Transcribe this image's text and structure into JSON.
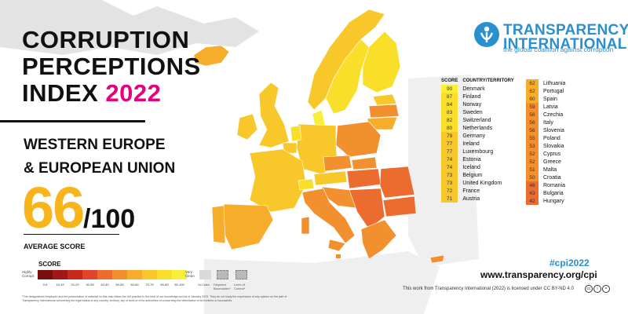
{
  "title": {
    "line1": "CORRUPTION",
    "line2": "PERCEPTIONS",
    "line3_prefix": "INDEX ",
    "year": "2022"
  },
  "region": {
    "line1": "WESTERN EUROPE",
    "line2": "& EUROPEAN UNION"
  },
  "score": {
    "value": "66",
    "denominator": "/100",
    "label": "AVERAGE SCORE"
  },
  "legend": {
    "title": "SCORE",
    "low_label": "Highly Corrupt",
    "high_label": "Very Clean",
    "bins": [
      {
        "label": "0-9",
        "color": "#7a0e0e"
      },
      {
        "label": "10-19",
        "color": "#a11616"
      },
      {
        "label": "20-29",
        "color": "#c8271c"
      },
      {
        "label": "30-39",
        "color": "#e0452a"
      },
      {
        "label": "40-49",
        "color": "#ec6b2e"
      },
      {
        "label": "50-59",
        "color": "#f2902f"
      },
      {
        "label": "60-69",
        "color": "#f6ad2c"
      },
      {
        "label": "70-79",
        "color": "#f8c72a"
      },
      {
        "label": "80-89",
        "color": "#f9df2a"
      },
      {
        "label": "90-100",
        "color": "#f7ef3b"
      }
    ],
    "no_data": "No Data",
    "disputed": "Disputed Boundaries*",
    "control": "Lines of Control*"
  },
  "disclaimer": "*The designations employed and the presentation of material on this map follow the UN practice to the best of our knowledge and as of January 2023. They do not imply the expression of any opinion on the part of Transparency International concerning the legal status of any country, territory, city or area or of its authorities or concerning the delimitation of its frontiers or boundaries.",
  "brand": {
    "name_line1": "TRANSPARENCY",
    "name_line2": "INTERNATIONAL",
    "tagline": "the global coalition against corruption",
    "color": "#2a8fcf"
  },
  "table": {
    "headers": {
      "score": "SCORE",
      "country": "COUNTRY/TERRITORY"
    },
    "col1": [
      {
        "score": "90",
        "country": "Denmark"
      },
      {
        "score": "87",
        "country": "Finland"
      },
      {
        "score": "84",
        "country": "Norway"
      },
      {
        "score": "83",
        "country": "Sweden"
      },
      {
        "score": "82",
        "country": "Switzerland"
      },
      {
        "score": "80",
        "country": "Netherlands"
      },
      {
        "score": "79",
        "country": "Germany"
      },
      {
        "score": "77",
        "country": "Ireland"
      },
      {
        "score": "77",
        "country": "Luxembourg"
      },
      {
        "score": "74",
        "country": "Estonia"
      },
      {
        "score": "74",
        "country": "Iceland"
      },
      {
        "score": "73",
        "country": "Belgium"
      },
      {
        "score": "73",
        "country": "United Kingdom"
      },
      {
        "score": "72",
        "country": "France"
      },
      {
        "score": "71",
        "country": "Austria"
      }
    ],
    "col2": [
      {
        "score": "62",
        "country": "Lithuania"
      },
      {
        "score": "62",
        "country": "Portugal"
      },
      {
        "score": "60",
        "country": "Spain"
      },
      {
        "score": "59",
        "country": "Latvia"
      },
      {
        "score": "56",
        "country": "Czechia"
      },
      {
        "score": "56",
        "country": "Italy"
      },
      {
        "score": "56",
        "country": "Slovenia"
      },
      {
        "score": "55",
        "country": "Poland"
      },
      {
        "score": "53",
        "country": "Slovakia"
      },
      {
        "score": "52",
        "country": "Cyprus"
      },
      {
        "score": "52",
        "country": "Greece"
      },
      {
        "score": "51",
        "country": "Malta"
      },
      {
        "score": "50",
        "country": "Croatia"
      },
      {
        "score": "46",
        "country": "Romania"
      },
      {
        "score": "43",
        "country": "Bulgaria"
      },
      {
        "score": "42",
        "country": "Hungary"
      }
    ]
  },
  "hashtag": "#cpi2022",
  "website": "www.transparency.org/cpi",
  "license": "This work from Transparency International (2022) is licensed under CC BY-ND 4.0",
  "cc_icons": [
    "cc-icon",
    "by-icon",
    "nd-icon"
  ]
}
